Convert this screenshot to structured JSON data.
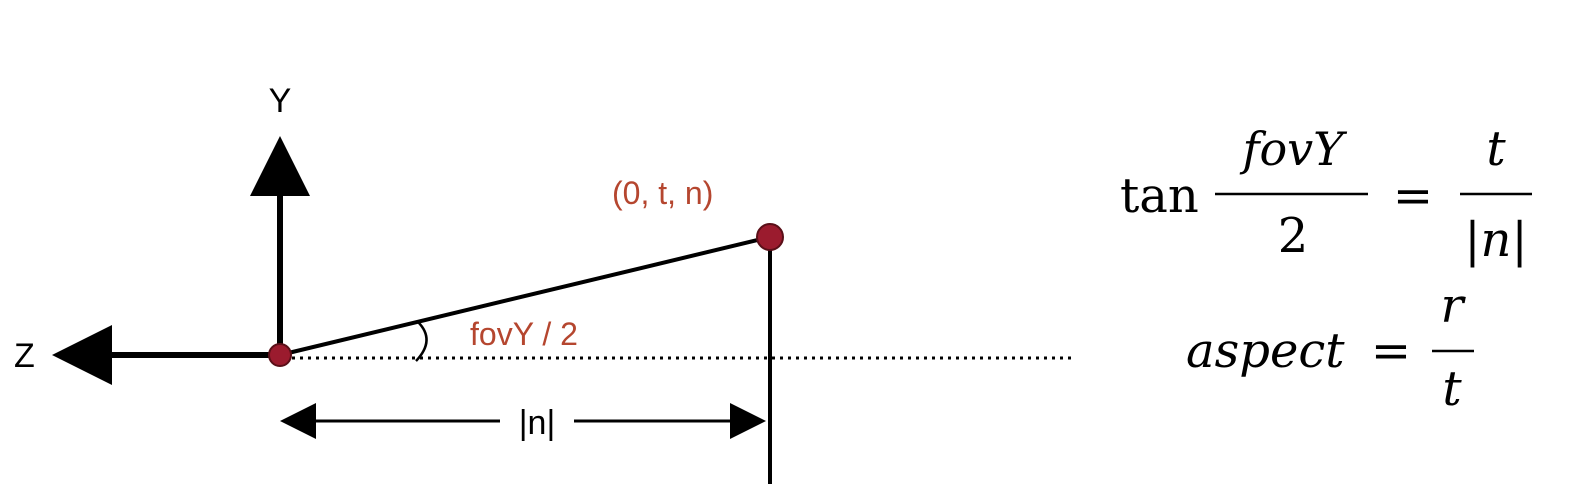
{
  "diagram": {
    "axes": {
      "y_label": "Y",
      "z_label": "Z"
    },
    "point_label": "(0, t, n)",
    "angle_label": "fovY / 2",
    "distance_label": "|n|",
    "colors": {
      "ink": "#000000",
      "accent": "#b5462f",
      "point_fill": "#9b1b2e",
      "point_stroke": "#5a0f18"
    }
  },
  "equations": {
    "eq1": {
      "lhs_func": "tan",
      "lhs_num": "fovY",
      "lhs_den": "2",
      "equals": "=",
      "rhs_num": "t",
      "rhs_den": "|n|"
    },
    "eq2": {
      "lhs": "aspect",
      "equals": "=",
      "rhs_num": "r",
      "rhs_den": "t"
    }
  }
}
